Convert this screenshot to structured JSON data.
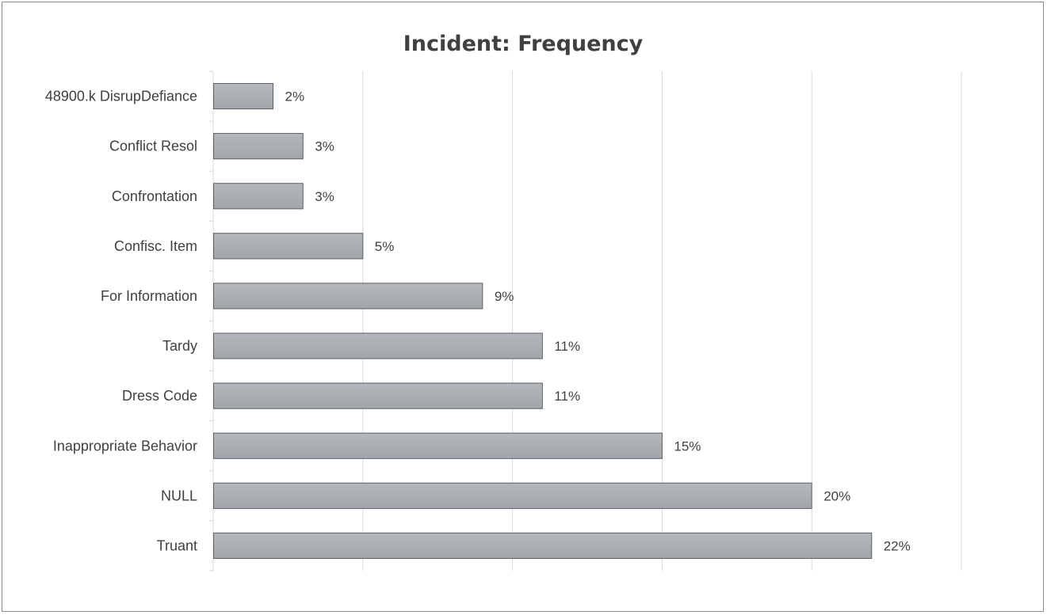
{
  "chart_data": {
    "type": "bar",
    "orientation": "horizontal",
    "title": "Incident: Frequency",
    "xlabel": "",
    "ylabel": "",
    "categories": [
      "48900.k DisrupDefiance",
      "Conflict Resol",
      "Confrontation",
      "Confisc. Item",
      "For Information",
      "Tardy",
      "Dress Code",
      "Inappropriate Behavior",
      "NULL",
      "Truant"
    ],
    "values": [
      2,
      3,
      3,
      5,
      9,
      11,
      11,
      15,
      20,
      22
    ],
    "value_labels": [
      "2%",
      "3%",
      "3%",
      "5%",
      "9%",
      "11%",
      "11%",
      "15%",
      "20%",
      "22%"
    ],
    "xlim": [
      0,
      25
    ],
    "grid": true,
    "legend": "none",
    "colors": {
      "bar_fill_top": "#b4b8bc",
      "bar_fill_bottom": "#a2a6aa",
      "bar_stroke": "#5a6068",
      "gridline": "#d9d9d9",
      "text": "#404040"
    }
  }
}
